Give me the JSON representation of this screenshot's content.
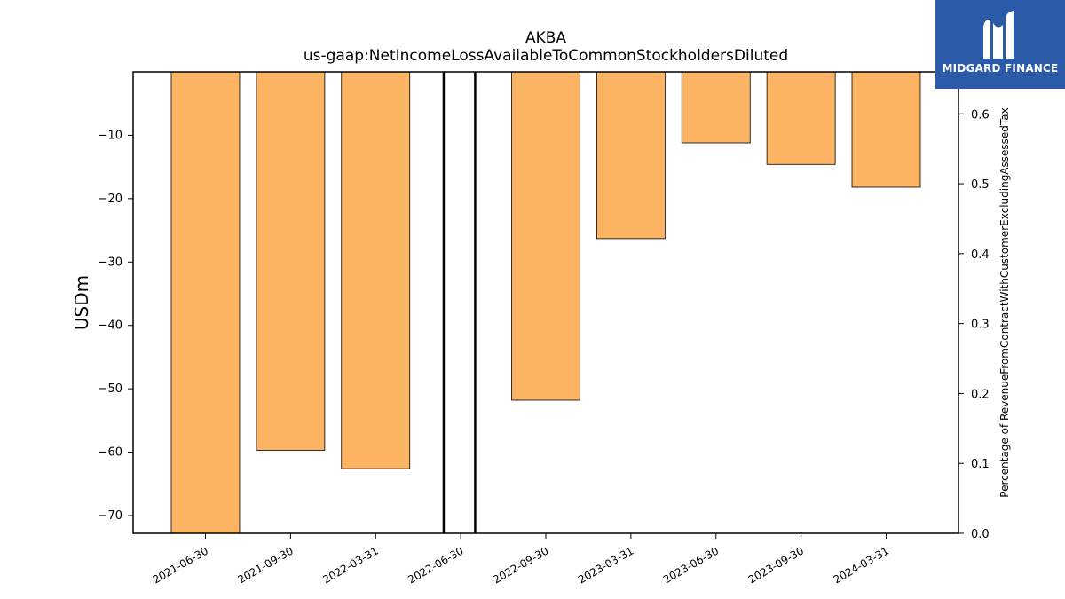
{
  "chart_data": {
    "type": "bar",
    "title": "AKBA",
    "subtitle": "us-gaap:NetIncomeLossAvailableToCommonStockholdersDiluted",
    "ylabel": "USDm",
    "y2label": "Percentage of RevenueFromContractWithCustomerExcludingAssessedTax",
    "categories": [
      "2021-06-30",
      "2021-09-30",
      "2022-03-31",
      "2022-06-30",
      "2022-09-30",
      "2023-03-31",
      "2023-06-30",
      "2023-09-30",
      "2024-03-31"
    ],
    "values": [
      -72.8,
      -59.7,
      -62.6,
      null,
      -51.8,
      -26.3,
      -11.2,
      -14.6,
      -18.2
    ],
    "ylim": [
      -72.8,
      0
    ],
    "yticks": [
      -10,
      -20,
      -30,
      -40,
      -50,
      -60,
      -70
    ],
    "y2lim": [
      0,
      0.66
    ],
    "y2ticks": [
      0.0,
      0.1,
      0.2,
      0.3,
      0.4,
      0.5,
      0.6
    ],
    "vertical_lines_between": [
      "2022-03-31",
      "2022-06-30",
      "2022-09-30"
    ],
    "bar_color": "#fdb462",
    "grid": false,
    "legend": "none"
  },
  "logo": {
    "text": "MIDGARD FINANCE",
    "color": "#2a5aa8"
  }
}
